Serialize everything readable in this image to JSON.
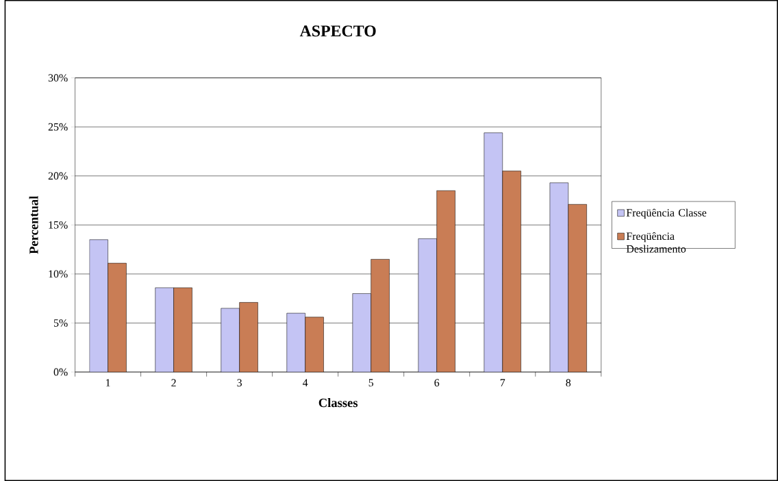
{
  "chart_data": {
    "type": "bar",
    "title": "ASPECTO",
    "xlabel": "Classes",
    "ylabel": "Percentual",
    "categories": [
      "1",
      "2",
      "3",
      "4",
      "5",
      "6",
      "7",
      "8"
    ],
    "series": [
      {
        "name": "Freqüência Classe",
        "color": "#c4c4f4",
        "values": [
          13.5,
          8.6,
          6.5,
          6.0,
          8.0,
          13.6,
          24.4,
          19.3
        ]
      },
      {
        "name": "Freqüência Deslizamento",
        "color": "#c97d55",
        "values": [
          11.1,
          8.6,
          7.1,
          5.6,
          11.5,
          18.5,
          20.5,
          17.1
        ]
      }
    ],
    "ylim": [
      0,
      30
    ],
    "yticks": [
      {
        "value": 0,
        "label": "0%"
      },
      {
        "value": 5,
        "label": "5%"
      },
      {
        "value": 10,
        "label": "10%"
      },
      {
        "value": 15,
        "label": "15%"
      },
      {
        "value": 20,
        "label": "20%"
      },
      {
        "value": 25,
        "label": "25%"
      },
      {
        "value": 30,
        "label": "30%"
      }
    ],
    "grid": "y",
    "legend": "right"
  }
}
